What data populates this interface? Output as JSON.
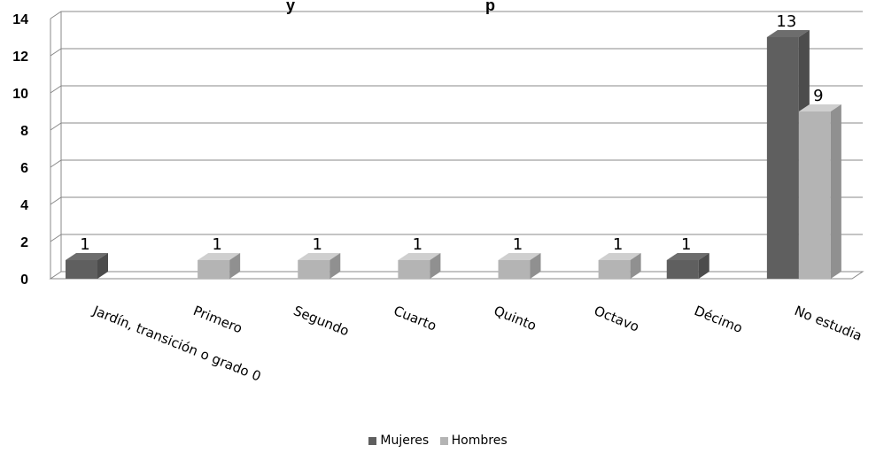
{
  "chart_data": {
    "type": "bar",
    "title_fragment": "y",
    "title_fragment_2": "p",
    "categories": [
      "Jardín, transición o grado 0",
      "Primero",
      "Segundo",
      "Cuarto",
      "Quinto",
      "Octavo",
      "Décimo",
      "No estudia"
    ],
    "series": [
      {
        "name": "Mujeres",
        "color": "#5f5f5f",
        "values": [
          1,
          0,
          0,
          0,
          0,
          0,
          1,
          13
        ]
      },
      {
        "name": "Hombres",
        "color": "#b4b4b4",
        "values": [
          0,
          1,
          1,
          1,
          1,
          1,
          0,
          9
        ]
      }
    ],
    "yticks": [
      "0",
      "2",
      "4",
      "6",
      "8",
      "10",
      "12",
      "14"
    ],
    "ylim": [
      0,
      14
    ],
    "grid": true,
    "legend_position": "bottom",
    "three_d": true
  }
}
